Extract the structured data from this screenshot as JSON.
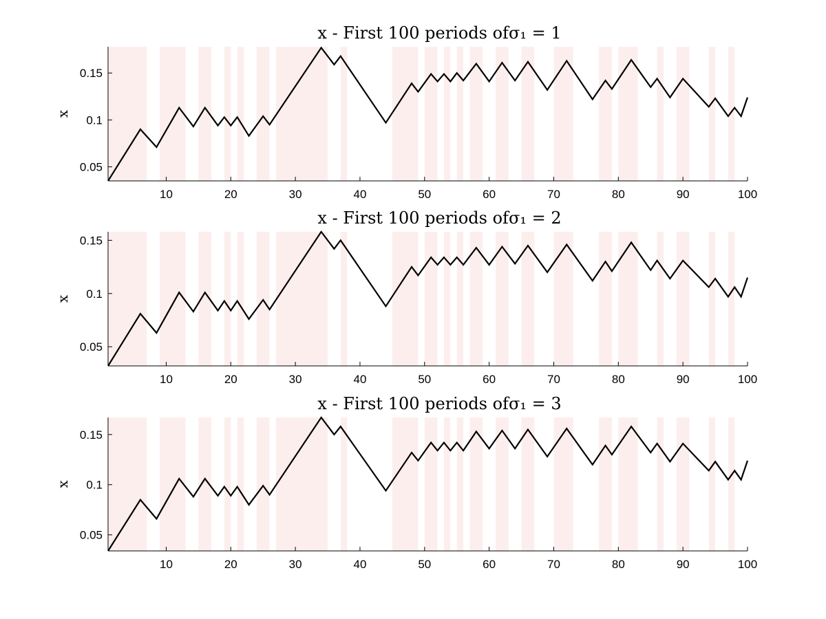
{
  "chart_data": [
    {
      "type": "line",
      "title": "x - First 100 periods of",
      "title_math": "σ₁ = 1",
      "ylabel": "x",
      "xlabel": "",
      "xlim": [
        1,
        100
      ],
      "ylim": [
        0.035,
        0.178
      ],
      "xticks": [
        10,
        20,
        30,
        40,
        50,
        60,
        70,
        80,
        90,
        100
      ],
      "yticks": [
        0.05,
        0.1,
        0.15
      ],
      "ytick_labels": [
        "0.05",
        "0.1",
        "0.15"
      ],
      "line_color": "#000000",
      "shade_color": "#fdeeee",
      "shaded_regions": [
        [
          1,
          7
        ],
        [
          9,
          13
        ],
        [
          15,
          17
        ],
        [
          19,
          20
        ],
        [
          21,
          22
        ],
        [
          24,
          26
        ],
        [
          27,
          35
        ],
        [
          37,
          38
        ],
        [
          45,
          49
        ],
        [
          50,
          52
        ],
        [
          53,
          54
        ],
        [
          55,
          56
        ],
        [
          57,
          59
        ],
        [
          61,
          63
        ],
        [
          65,
          67
        ],
        [
          70,
          73
        ],
        [
          77,
          79
        ],
        [
          80,
          83
        ],
        [
          86,
          87
        ],
        [
          89,
          91
        ],
        [
          94,
          95
        ],
        [
          97,
          98
        ]
      ],
      "series": [
        {
          "x": [
            1,
            6,
            8.5,
            12,
            14.2,
            16,
            18,
            19,
            20,
            21,
            22.8,
            25,
            26,
            34,
            36,
            37,
            44,
            48,
            49,
            51,
            52,
            53,
            54,
            55,
            56,
            58,
            60,
            62,
            64,
            66,
            69,
            72,
            76,
            78,
            79,
            82,
            85,
            86,
            88,
            90,
            94,
            95,
            97,
            98,
            99,
            100
          ],
          "y": [
            0.035,
            0.09,
            0.071,
            0.113,
            0.093,
            0.113,
            0.094,
            0.103,
            0.094,
            0.103,
            0.083,
            0.104,
            0.095,
            0.177,
            0.159,
            0.168,
            0.097,
            0.139,
            0.13,
            0.149,
            0.141,
            0.149,
            0.141,
            0.15,
            0.142,
            0.16,
            0.141,
            0.161,
            0.142,
            0.162,
            0.132,
            0.163,
            0.122,
            0.142,
            0.133,
            0.164,
            0.135,
            0.144,
            0.124,
            0.144,
            0.114,
            0.123,
            0.104,
            0.113,
            0.104,
            0.124
          ]
        }
      ]
    },
    {
      "type": "line",
      "title": "x - First 100 periods of",
      "title_math": "σ₁ = 2",
      "ylabel": "x",
      "xlabel": "",
      "xlim": [
        1,
        100
      ],
      "ylim": [
        0.032,
        0.158
      ],
      "xticks": [
        10,
        20,
        30,
        40,
        50,
        60,
        70,
        80,
        90,
        100
      ],
      "yticks": [
        0.05,
        0.1,
        0.15
      ],
      "ytick_labels": [
        "0.05",
        "0.1",
        "0.15"
      ],
      "line_color": "#000000",
      "shade_color": "#fdeeee",
      "shaded_regions": [
        [
          1,
          7
        ],
        [
          9,
          13
        ],
        [
          15,
          17
        ],
        [
          19,
          20
        ],
        [
          21,
          22
        ],
        [
          24,
          26
        ],
        [
          27,
          35
        ],
        [
          37,
          38
        ],
        [
          45,
          49
        ],
        [
          50,
          52
        ],
        [
          53,
          54
        ],
        [
          55,
          56
        ],
        [
          57,
          59
        ],
        [
          61,
          63
        ],
        [
          65,
          67
        ],
        [
          70,
          73
        ],
        [
          77,
          79
        ],
        [
          80,
          83
        ],
        [
          86,
          87
        ],
        [
          89,
          91
        ],
        [
          94,
          95
        ],
        [
          97,
          98
        ]
      ],
      "series": [
        {
          "x": [
            1,
            6,
            8.5,
            12,
            14.2,
            16,
            18,
            19,
            20,
            21,
            22.8,
            25,
            26,
            34,
            36,
            37,
            44,
            48,
            49,
            51,
            52,
            53,
            54,
            55,
            56,
            58,
            60,
            62,
            64,
            66,
            69,
            72,
            76,
            78,
            79,
            82,
            85,
            86,
            88,
            90,
            94,
            95,
            97,
            98,
            99,
            100
          ],
          "y": [
            0.032,
            0.081,
            0.063,
            0.101,
            0.083,
            0.101,
            0.084,
            0.093,
            0.084,
            0.093,
            0.076,
            0.094,
            0.085,
            0.158,
            0.142,
            0.15,
            0.088,
            0.125,
            0.117,
            0.134,
            0.127,
            0.134,
            0.127,
            0.134,
            0.127,
            0.143,
            0.127,
            0.144,
            0.128,
            0.145,
            0.12,
            0.146,
            0.112,
            0.13,
            0.121,
            0.148,
            0.122,
            0.131,
            0.114,
            0.131,
            0.106,
            0.114,
            0.097,
            0.106,
            0.097,
            0.115
          ]
        }
      ]
    },
    {
      "type": "line",
      "title": "x - First 100 periods of",
      "title_math": "σ₁ = 3",
      "ylabel": "x",
      "xlabel": "",
      "xlim": [
        1,
        100
      ],
      "ylim": [
        0.034,
        0.167
      ],
      "xticks": [
        10,
        20,
        30,
        40,
        50,
        60,
        70,
        80,
        90,
        100
      ],
      "yticks": [
        0.05,
        0.1,
        0.15
      ],
      "ytick_labels": [
        "0.05",
        "0.1",
        "0.15"
      ],
      "line_color": "#000000",
      "shade_color": "#fdeeee",
      "shaded_regions": [
        [
          1,
          7
        ],
        [
          9,
          13
        ],
        [
          15,
          17
        ],
        [
          19,
          20
        ],
        [
          21,
          22
        ],
        [
          24,
          26
        ],
        [
          27,
          35
        ],
        [
          37,
          38
        ],
        [
          45,
          49
        ],
        [
          50,
          52
        ],
        [
          53,
          54
        ],
        [
          55,
          56
        ],
        [
          57,
          59
        ],
        [
          61,
          63
        ],
        [
          65,
          67
        ],
        [
          70,
          73
        ],
        [
          77,
          79
        ],
        [
          80,
          83
        ],
        [
          86,
          87
        ],
        [
          89,
          91
        ],
        [
          94,
          95
        ],
        [
          97,
          98
        ]
      ],
      "series": [
        {
          "x": [
            1,
            6,
            8.5,
            12,
            14.2,
            16,
            18,
            19,
            20,
            21,
            22.8,
            25,
            26,
            34,
            36,
            37,
            44,
            48,
            49,
            51,
            52,
            53,
            54,
            55,
            56,
            58,
            60,
            62,
            64,
            66,
            69,
            72,
            76,
            78,
            79,
            82,
            85,
            86,
            88,
            90,
            94,
            95,
            97,
            98,
            99,
            100
          ],
          "y": [
            0.034,
            0.085,
            0.066,
            0.106,
            0.088,
            0.106,
            0.089,
            0.098,
            0.089,
            0.098,
            0.08,
            0.099,
            0.09,
            0.167,
            0.15,
            0.158,
            0.094,
            0.132,
            0.124,
            0.142,
            0.134,
            0.142,
            0.134,
            0.142,
            0.134,
            0.153,
            0.136,
            0.154,
            0.136,
            0.155,
            0.128,
            0.156,
            0.12,
            0.139,
            0.13,
            0.158,
            0.132,
            0.141,
            0.123,
            0.141,
            0.114,
            0.123,
            0.105,
            0.114,
            0.105,
            0.124
          ]
        }
      ]
    }
  ]
}
